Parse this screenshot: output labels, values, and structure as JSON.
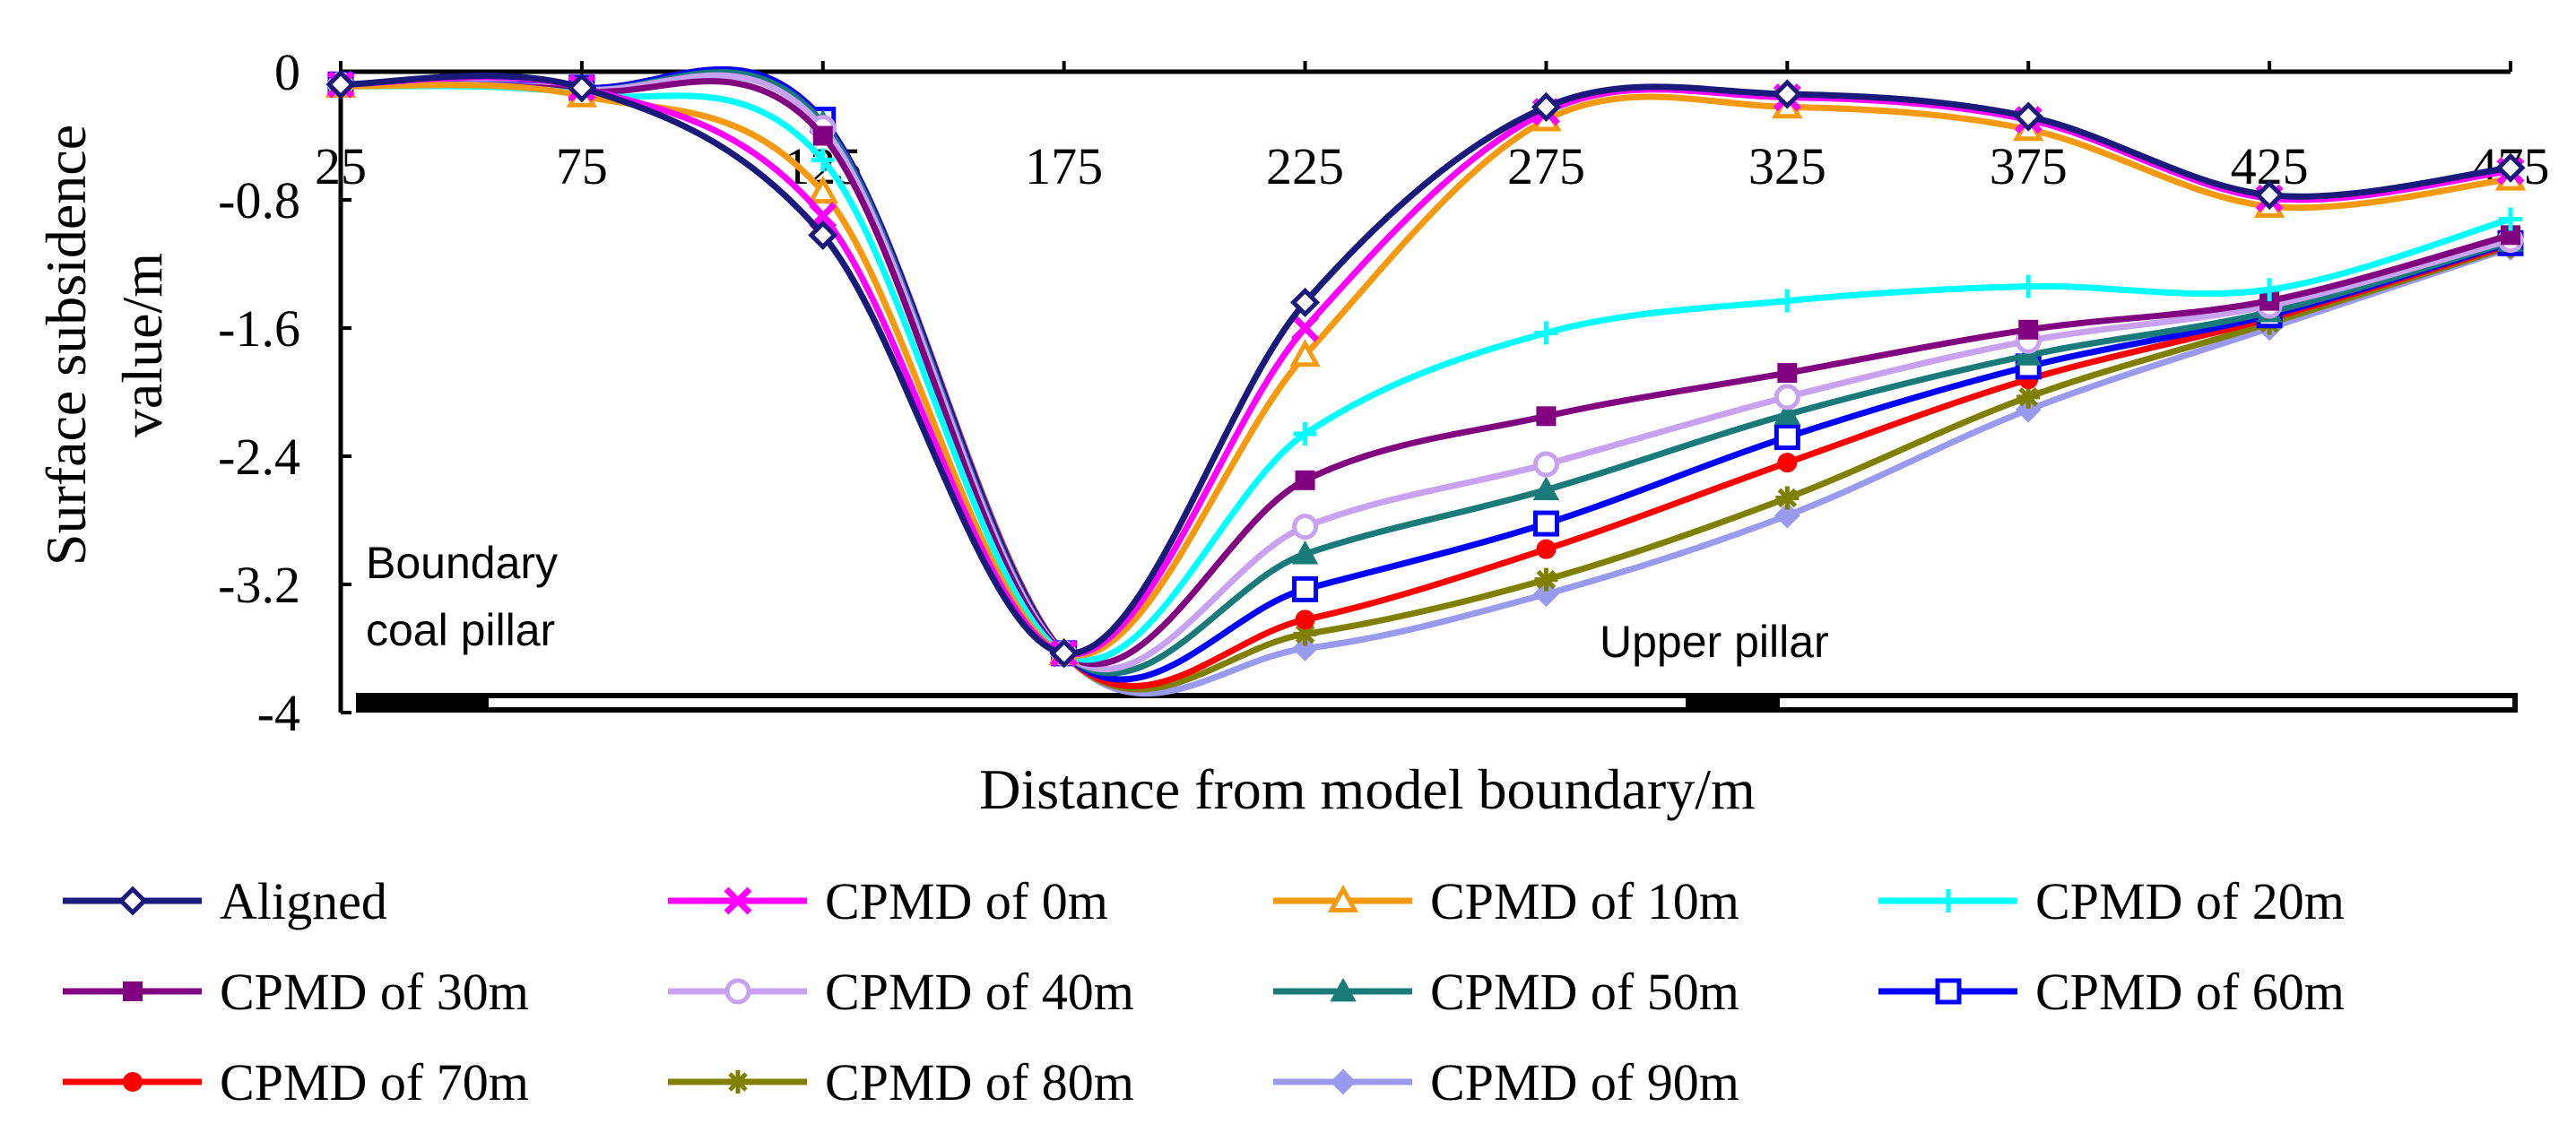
{
  "chart_data": {
    "type": "line",
    "title": "",
    "xlabel": "Distance from model boundary/m",
    "ylabel": "Surface subsidence value/m",
    "x": [
      25,
      75,
      125,
      175,
      225,
      275,
      325,
      375,
      425,
      475
    ],
    "xlim": [
      25,
      475
    ],
    "ylim": [
      -4,
      0
    ],
    "x_ticks": [
      "25",
      "75",
      "125",
      "175",
      "225",
      "275",
      "325",
      "375",
      "425",
      "475"
    ],
    "y_ticks": [
      "0",
      "-0.8",
      "-1.6",
      "-2.4",
      "-3.2",
      "-4"
    ],
    "grid": false,
    "legend_position": "bottom",
    "annotations": {
      "left_pillar": [
        "Boundary",
        "coal pillar"
      ],
      "upper_pillar": "Upper pillar"
    },
    "series": [
      {
        "name": "Aligned",
        "color": "#1a1a7a",
        "marker": "diamond-open",
        "values": [
          -0.08,
          -0.1,
          -1.02,
          -3.63,
          -1.44,
          -0.22,
          -0.14,
          -0.28,
          -0.77,
          -0.6
        ]
      },
      {
        "name": "CPMD of 0m",
        "color": "#ff00ff",
        "marker": "x",
        "values": [
          -0.08,
          -0.1,
          -0.9,
          -3.63,
          -1.6,
          -0.25,
          -0.16,
          -0.3,
          -0.79,
          -0.62
        ]
      },
      {
        "name": "CPMD of 10m",
        "color": "#f59a10",
        "marker": "triangle-open",
        "values": [
          -0.09,
          -0.15,
          -0.75,
          -3.63,
          -1.77,
          -0.3,
          -0.22,
          -0.36,
          -0.84,
          -0.67
        ]
      },
      {
        "name": "CPMD of 20m",
        "color": "#00ffff",
        "marker": "plus",
        "values": [
          -0.09,
          -0.14,
          -0.55,
          -3.63,
          -2.26,
          -1.63,
          -1.43,
          -1.34,
          -1.36,
          -0.92
        ]
      },
      {
        "name": "CPMD of 30m",
        "color": "#800080",
        "marker": "square-filled",
        "values": [
          -0.08,
          -0.12,
          -0.4,
          -3.63,
          -2.55,
          -2.15,
          -1.88,
          -1.61,
          -1.43,
          -1.02
        ]
      },
      {
        "name": "CPMD of 40m",
        "color": "#c8a2f0",
        "marker": "circle-open",
        "values": [
          -0.08,
          -0.11,
          -0.35,
          -3.63,
          -2.84,
          -2.45,
          -2.03,
          -1.68,
          -1.46,
          -1.05
        ]
      },
      {
        "name": "CPMD of 50m",
        "color": "#1a7a7a",
        "marker": "triangle-filled",
        "values": [
          -0.08,
          -0.11,
          -0.32,
          -3.63,
          -3.01,
          -2.61,
          -2.14,
          -1.77,
          -1.5,
          -1.06
        ]
      },
      {
        "name": "CPMD of 60m",
        "color": "#0000ff",
        "marker": "square-open",
        "values": [
          -0.08,
          -0.1,
          -0.3,
          -3.63,
          -3.23,
          -2.82,
          -2.28,
          -1.84,
          -1.52,
          -1.07
        ]
      },
      {
        "name": "CPMD of 70m",
        "color": "#ff0000",
        "marker": "circle-filled",
        "values": [
          -0.08,
          -0.1,
          -0.3,
          -3.63,
          -3.42,
          -2.98,
          -2.44,
          -1.92,
          -1.54,
          -1.08
        ]
      },
      {
        "name": "CPMD of 80m",
        "color": "#808000",
        "marker": "star",
        "values": [
          -0.08,
          -0.1,
          -0.3,
          -3.63,
          -3.51,
          -3.17,
          -2.66,
          -2.03,
          -1.57,
          -1.09
        ]
      },
      {
        "name": "CPMD of 90m",
        "color": "#9999ee",
        "marker": "diamond-filled",
        "values": [
          -0.08,
          -0.1,
          -0.3,
          -3.63,
          -3.6,
          -3.26,
          -2.77,
          -2.11,
          -1.6,
          -1.1
        ]
      }
    ]
  }
}
